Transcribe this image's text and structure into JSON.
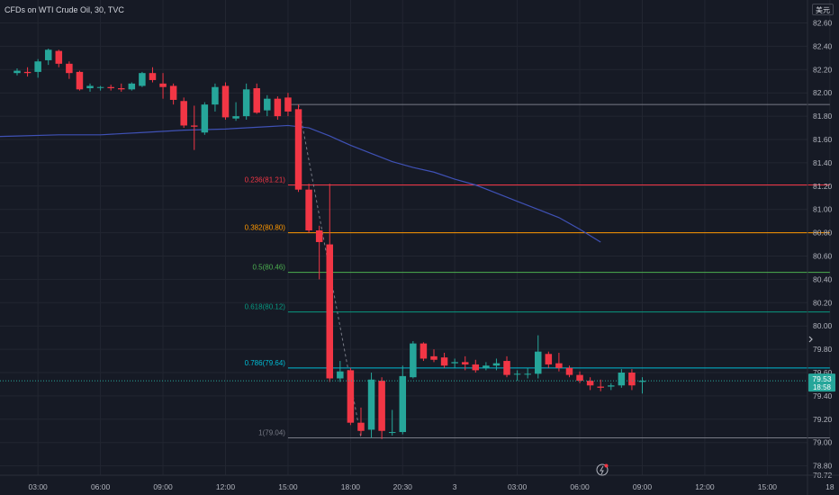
{
  "header": {
    "title": "CFDs on WTI Crude Oil, 30, TVC"
  },
  "currency_label": "美元",
  "price_tag": {
    "price": "79.53",
    "countdown": "18:58"
  },
  "colors": {
    "up": "#26a69a",
    "down": "#f23645",
    "ma": "#3f51b5",
    "background": "#161a25",
    "grid": "#222631",
    "text": "#b2b5be"
  },
  "chart_data": {
    "type": "candlestick",
    "title": "CFDs on WTI Crude Oil, 30, TVC",
    "ylim": [
      78.72,
      82.72
    ],
    "y_ticks": [
      "82.60",
      "82.40",
      "82.20",
      "82.00",
      "81.80",
      "81.60",
      "81.40",
      "81.20",
      "81.00",
      "80.80",
      "80.60",
      "80.40",
      "80.20",
      "80.00",
      "79.80",
      "79.60",
      "79.40",
      "79.20",
      "79.00",
      "78.80",
      "78.72"
    ],
    "x_ticks": [
      {
        "t": 2,
        "label": "03:00"
      },
      {
        "t": 8,
        "label": "06:00"
      },
      {
        "t": 14,
        "label": "09:00"
      },
      {
        "t": 20,
        "label": "12:00"
      },
      {
        "t": 26,
        "label": "15:00"
      },
      {
        "t": 32,
        "label": "18:00"
      },
      {
        "t": 37,
        "label": "20:30"
      },
      {
        "t": 42,
        "label": "3"
      },
      {
        "t": 48,
        "label": "03:00"
      },
      {
        "t": 54,
        "label": "06:00"
      },
      {
        "t": 60,
        "label": "09:00"
      },
      {
        "t": 66,
        "label": "12:00"
      },
      {
        "t": 72,
        "label": "15:00"
      },
      {
        "t": 78,
        "label": "18"
      }
    ],
    "candles": [
      {
        "t": 0,
        "o": 82.17,
        "h": 82.21,
        "c": 82.19,
        "l": 82.15
      },
      {
        "t": 1,
        "o": 82.18,
        "h": 82.22,
        "c": 82.17,
        "l": 82.14
      },
      {
        "t": 2,
        "o": 82.18,
        "h": 82.29,
        "c": 82.27,
        "l": 82.13
      },
      {
        "t": 3,
        "o": 82.28,
        "h": 82.38,
        "c": 82.37,
        "l": 82.24
      },
      {
        "t": 4,
        "o": 82.36,
        "h": 82.37,
        "c": 82.25,
        "l": 82.22
      },
      {
        "t": 5,
        "o": 82.25,
        "h": 82.27,
        "c": 82.17,
        "l": 82.12
      },
      {
        "t": 6,
        "o": 82.18,
        "h": 82.19,
        "c": 82.03,
        "l": 82.02
      },
      {
        "t": 7,
        "o": 82.04,
        "h": 82.08,
        "c": 82.06,
        "l": 82.01
      },
      {
        "t": 8,
        "o": 82.05,
        "h": 82.06,
        "c": 82.05,
        "l": 82.02
      },
      {
        "t": 9,
        "o": 82.05,
        "h": 82.07,
        "c": 82.04,
        "l": 82.02
      },
      {
        "t": 10,
        "o": 82.04,
        "h": 82.08,
        "c": 82.03,
        "l": 82.01
      },
      {
        "t": 11,
        "o": 82.03,
        "h": 82.09,
        "c": 82.08,
        "l": 82.02
      },
      {
        "t": 12,
        "o": 82.06,
        "h": 82.18,
        "c": 82.17,
        "l": 82.05
      },
      {
        "t": 13,
        "o": 82.17,
        "h": 82.22,
        "c": 82.11,
        "l": 82.09
      },
      {
        "t": 14,
        "o": 82.08,
        "h": 82.17,
        "c": 82.05,
        "l": 81.95
      },
      {
        "t": 15,
        "o": 82.06,
        "h": 82.08,
        "c": 81.94,
        "l": 81.9
      },
      {
        "t": 16,
        "o": 81.93,
        "h": 81.96,
        "c": 81.72,
        "l": 81.7
      },
      {
        "t": 17,
        "o": 81.72,
        "h": 81.89,
        "c": 81.71,
        "l": 81.51
      },
      {
        "t": 18,
        "o": 81.66,
        "h": 81.92,
        "c": 81.9,
        "l": 81.64
      },
      {
        "t": 19,
        "o": 81.9,
        "h": 82.08,
        "c": 82.05,
        "l": 81.84
      },
      {
        "t": 20,
        "o": 82.06,
        "h": 82.09,
        "c": 81.79,
        "l": 81.77
      },
      {
        "t": 21,
        "o": 81.78,
        "h": 81.92,
        "c": 81.8,
        "l": 81.76
      },
      {
        "t": 22,
        "o": 81.8,
        "h": 82.08,
        "c": 82.03,
        "l": 81.77
      },
      {
        "t": 23,
        "o": 82.04,
        "h": 82.08,
        "c": 81.83,
        "l": 81.82
      },
      {
        "t": 24,
        "o": 81.85,
        "h": 81.98,
        "c": 81.95,
        "l": 81.8
      },
      {
        "t": 25,
        "o": 81.95,
        "h": 81.97,
        "c": 81.8,
        "l": 81.77
      },
      {
        "t": 26,
        "o": 81.96,
        "h": 82.0,
        "c": 81.84,
        "l": 81.8
      },
      {
        "t": 27,
        "o": 81.86,
        "h": 81.9,
        "c": 81.17,
        "l": 81.15
      },
      {
        "t": 28,
        "o": 81.17,
        "h": 81.22,
        "c": 80.82,
        "l": 80.8
      },
      {
        "t": 29,
        "o": 80.82,
        "h": 80.86,
        "c": 80.72,
        "l": 80.4
      },
      {
        "t": 30,
        "o": 80.7,
        "h": 81.22,
        "c": 79.55,
        "l": 79.52
      },
      {
        "t": 31,
        "o": 79.55,
        "h": 79.7,
        "c": 79.61,
        "l": 79.52
      },
      {
        "t": 32,
        "o": 79.62,
        "h": 79.64,
        "c": 79.17,
        "l": 79.15
      },
      {
        "t": 33,
        "o": 79.17,
        "h": 79.3,
        "c": 79.1,
        "l": 79.06
      },
      {
        "t": 34,
        "o": 79.11,
        "h": 79.6,
        "c": 79.54,
        "l": 79.04
      },
      {
        "t": 35,
        "o": 79.53,
        "h": 79.56,
        "c": 79.1,
        "l": 79.03
      },
      {
        "t": 36,
        "o": 79.09,
        "h": 79.28,
        "c": 79.09,
        "l": 79.06
      },
      {
        "t": 37,
        "o": 79.09,
        "h": 79.66,
        "c": 79.57,
        "l": 79.07
      },
      {
        "t": 38,
        "o": 79.56,
        "h": 79.87,
        "c": 79.85,
        "l": 79.55
      },
      {
        "t": 39,
        "o": 79.85,
        "h": 79.86,
        "c": 79.72,
        "l": 79.7
      },
      {
        "t": 40,
        "o": 79.74,
        "h": 79.8,
        "c": 79.71,
        "l": 79.69
      },
      {
        "t": 41,
        "o": 79.73,
        "h": 79.77,
        "c": 79.66,
        "l": 79.64
      },
      {
        "t": 42,
        "o": 79.68,
        "h": 79.72,
        "c": 79.69,
        "l": 79.64
      },
      {
        "t": 43,
        "o": 79.69,
        "h": 79.74,
        "c": 79.67,
        "l": 79.62
      },
      {
        "t": 44,
        "o": 79.67,
        "h": 79.71,
        "c": 79.62,
        "l": 79.6
      },
      {
        "t": 45,
        "o": 79.64,
        "h": 79.69,
        "c": 79.66,
        "l": 79.62
      },
      {
        "t": 46,
        "o": 79.66,
        "h": 79.72,
        "c": 79.68,
        "l": 79.62
      },
      {
        "t": 47,
        "o": 79.7,
        "h": 79.74,
        "c": 79.58,
        "l": 79.56
      },
      {
        "t": 48,
        "o": 79.59,
        "h": 79.62,
        "c": 79.59,
        "l": 79.53
      },
      {
        "t": 49,
        "o": 79.59,
        "h": 79.64,
        "c": 79.59,
        "l": 79.55
      },
      {
        "t": 50,
        "o": 79.59,
        "h": 79.92,
        "c": 79.78,
        "l": 79.55
      },
      {
        "t": 51,
        "o": 79.76,
        "h": 79.78,
        "c": 79.67,
        "l": 79.64
      },
      {
        "t": 52,
        "o": 79.68,
        "h": 79.77,
        "c": 79.64,
        "l": 79.61
      },
      {
        "t": 53,
        "o": 79.64,
        "h": 79.66,
        "c": 79.58,
        "l": 79.56
      },
      {
        "t": 54,
        "o": 79.58,
        "h": 79.61,
        "c": 79.53,
        "l": 79.51
      },
      {
        "t": 55,
        "o": 79.53,
        "h": 79.56,
        "c": 79.49,
        "l": 79.45
      },
      {
        "t": 56,
        "o": 79.48,
        "h": 79.54,
        "c": 79.47,
        "l": 79.44
      },
      {
        "t": 57,
        "o": 79.48,
        "h": 79.51,
        "c": 79.49,
        "l": 79.45
      },
      {
        "t": 58,
        "o": 79.49,
        "h": 79.63,
        "c": 79.6,
        "l": 79.47
      },
      {
        "t": 59,
        "o": 79.6,
        "h": 79.63,
        "c": 79.49,
        "l": 79.45
      },
      {
        "t": 60,
        "o": 79.52,
        "h": 79.56,
        "c": 79.53,
        "l": 79.42
      }
    ],
    "moving_average": [
      {
        "t": -12.5,
        "v": 81.57
      },
      {
        "t": -8,
        "v": 81.6
      },
      {
        "t": -4,
        "v": 81.62
      },
      {
        "t": 0,
        "v": 81.63
      },
      {
        "t": 4,
        "v": 81.64
      },
      {
        "t": 8,
        "v": 81.64
      },
      {
        "t": 12,
        "v": 81.66
      },
      {
        "t": 16,
        "v": 81.68
      },
      {
        "t": 20,
        "v": 81.69
      },
      {
        "t": 24,
        "v": 81.71
      },
      {
        "t": 26,
        "v": 81.72
      },
      {
        "t": 28,
        "v": 81.7
      },
      {
        "t": 30,
        "v": 81.63
      },
      {
        "t": 32,
        "v": 81.55
      },
      {
        "t": 34,
        "v": 81.48
      },
      {
        "t": 36,
        "v": 81.41
      },
      {
        "t": 38,
        "v": 81.36
      },
      {
        "t": 40,
        "v": 81.32
      },
      {
        "t": 42,
        "v": 81.26
      },
      {
        "t": 44,
        "v": 81.21
      },
      {
        "t": 46,
        "v": 81.14
      },
      {
        "t": 48,
        "v": 81.07
      },
      {
        "t": 50,
        "v": 81.0
      },
      {
        "t": 52,
        "v": 80.93
      },
      {
        "t": 54,
        "v": 80.83
      },
      {
        "t": 56,
        "v": 80.72
      }
    ],
    "fibonacci": {
      "start_t": 26,
      "end_t": 78,
      "levels": [
        {
          "label": "0.236(81.21)",
          "price": 81.21,
          "color": "#f23645"
        },
        {
          "label": "0.382(80.80)",
          "price": 80.8,
          "color": "#ff9800"
        },
        {
          "label": "0.5(80.46)",
          "price": 80.46,
          "color": "#4caf50"
        },
        {
          "label": "0.618(80.12)",
          "price": 80.12,
          "color": "#089981"
        },
        {
          "label": "0.786(79.64)",
          "price": 79.64,
          "color": "#00bcd4"
        },
        {
          "label": "1(79.04)",
          "price": 79.04,
          "color": "#787b86"
        }
      ],
      "top_price": 81.9,
      "trend_from": {
        "t": 27,
        "v": 81.9
      },
      "trend_to": {
        "t": 33,
        "v": 79.04
      }
    },
    "current_price": 79.53
  }
}
